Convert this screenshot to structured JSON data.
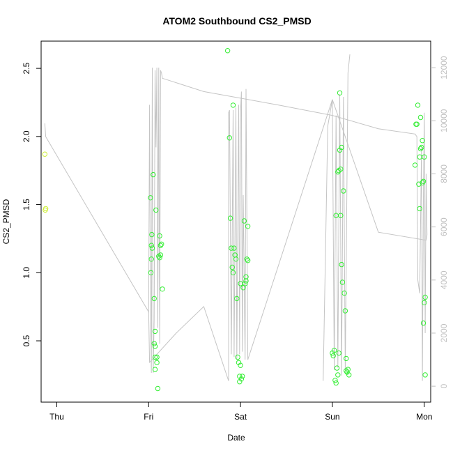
{
  "chart_data": {
    "type": "scatter",
    "title": "ATOM2 Southbound CS2_PMSD",
    "xlabel": "Date",
    "ylabel": "CS2_PMSD",
    "x_ticks": [
      "Thu",
      "Fri",
      "Sat",
      "Sun",
      "Mon"
    ],
    "x_tick_values": [
      0,
      1,
      2,
      3,
      4
    ],
    "xlim": [
      -0.17,
      4.07
    ],
    "y_ticks": [
      "0.5",
      "1.0",
      "1.5",
      "2.0",
      "2.5"
    ],
    "y_tick_values": [
      0.5,
      1.0,
      1.5,
      2.0,
      2.5
    ],
    "ylim": [
      0.05,
      2.7
    ],
    "y2_ticks": [
      "0",
      "2000",
      "4000",
      "6000",
      "8000",
      "10000",
      "12000"
    ],
    "y2_tick_values": [
      0,
      2000,
      4000,
      6000,
      8000,
      10000,
      12000
    ],
    "y2lim": [
      -600,
      13000
    ],
    "colors": {
      "points_yellow": "#ccee33",
      "points_green": "#33ee33",
      "line": "#c4c4c4"
    },
    "series": [
      {
        "color": "#ccee33",
        "points": [
          [
            -0.13,
            1.87
          ],
          [
            -0.12,
            1.47
          ],
          [
            -0.125,
            1.46
          ]
        ]
      },
      {
        "color": "#33ee33",
        "points": [
          [
            1.02,
            1.55
          ],
          [
            1.03,
            1.2
          ],
          [
            1.035,
            1.28
          ],
          [
            1.04,
            1.18
          ],
          [
            1.03,
            1.1
          ],
          [
            1.025,
            1.0
          ],
          [
            1.05,
            1.72
          ],
          [
            1.06,
            0.81
          ],
          [
            1.07,
            0.57
          ],
          [
            1.08,
            1.46
          ],
          [
            1.07,
            0.46
          ],
          [
            1.06,
            0.48
          ],
          [
            1.07,
            0.38
          ],
          [
            1.09,
            0.38
          ],
          [
            1.07,
            0.29
          ],
          [
            1.09,
            0.34
          ],
          [
            1.1,
            0.15
          ],
          [
            1.11,
            1.12
          ],
          [
            1.12,
            1.11
          ],
          [
            1.13,
            1.2
          ],
          [
            1.12,
            1.27
          ],
          [
            1.14,
            1.21
          ],
          [
            1.13,
            1.13
          ],
          [
            1.15,
            0.88
          ],
          [
            1.86,
            2.63
          ],
          [
            1.88,
            1.99
          ],
          [
            1.89,
            1.4
          ],
          [
            1.9,
            1.18
          ],
          [
            1.91,
            1.04
          ],
          [
            1.92,
            1.0
          ],
          [
            1.93,
            1.18
          ],
          [
            1.94,
            1.13
          ],
          [
            1.92,
            2.23
          ],
          [
            1.95,
            1.1
          ],
          [
            1.96,
            0.81
          ],
          [
            1.97,
            0.38
          ],
          [
            1.98,
            0.34
          ],
          [
            1.99,
            0.24
          ],
          [
            1.99,
            0.2
          ],
          [
            2.0,
            0.32
          ],
          [
            2.01,
            0.22
          ],
          [
            2.02,
            0.24
          ],
          [
            2.03,
            0.89
          ],
          [
            2.04,
            1.38
          ],
          [
            2.05,
            0.92
          ],
          [
            2.06,
            0.94
          ],
          [
            2.06,
            0.97
          ],
          [
            2.07,
            1.1
          ],
          [
            2.08,
            1.09
          ],
          [
            2.08,
            1.34
          ],
          [
            2.0,
            0.92
          ],
          [
            3.0,
            0.41
          ],
          [
            3.01,
            0.39
          ],
          [
            3.02,
            0.43
          ],
          [
            3.03,
            0.21
          ],
          [
            3.04,
            0.19
          ],
          [
            3.05,
            0.3
          ],
          [
            3.06,
            0.25
          ],
          [
            3.04,
            1.42
          ],
          [
            3.06,
            1.74
          ],
          [
            3.07,
            1.75
          ],
          [
            3.08,
            1.9
          ],
          [
            3.09,
            1.76
          ],
          [
            3.1,
            1.92
          ],
          [
            3.08,
            2.32
          ],
          [
            3.09,
            1.42
          ],
          [
            3.1,
            1.06
          ],
          [
            3.11,
            0.93
          ],
          [
            3.12,
            1.6
          ],
          [
            3.13,
            0.85
          ],
          [
            3.14,
            0.72
          ],
          [
            3.15,
            0.37
          ],
          [
            3.15,
            0.28
          ],
          [
            3.16,
            0.27
          ],
          [
            3.17,
            0.29
          ],
          [
            3.18,
            0.25
          ],
          [
            3.07,
            0.41
          ],
          [
            3.9,
            1.79
          ],
          [
            3.91,
            2.09
          ],
          [
            3.92,
            2.09
          ],
          [
            3.93,
            2.23
          ],
          [
            3.94,
            1.65
          ],
          [
            3.95,
            1.85
          ],
          [
            3.95,
            1.47
          ],
          [
            3.96,
            1.91
          ],
          [
            3.96,
            2.14
          ],
          [
            3.97,
            1.92
          ],
          [
            3.98,
            1.97
          ],
          [
            3.98,
            1.66
          ],
          [
            3.99,
            1.67
          ],
          [
            4.0,
            1.85
          ],
          [
            3.99,
            0.63
          ],
          [
            4.0,
            0.78
          ],
          [
            4.01,
            0.82
          ],
          [
            4.01,
            0.25
          ]
        ]
      }
    ],
    "line_series_y2": [
      [
        -0.13,
        9900
      ],
      [
        -0.12,
        9400
      ],
      [
        1.0,
        2800
      ],
      [
        1.01,
        10600
      ],
      [
        1.02,
        2800
      ],
      [
        1.03,
        500
      ],
      [
        1.04,
        12000
      ],
      [
        1.05,
        500
      ],
      [
        1.06,
        2500
      ],
      [
        1.07,
        11900
      ],
      [
        1.08,
        9000
      ],
      [
        1.09,
        12000
      ],
      [
        1.1,
        2200
      ],
      [
        1.11,
        12000
      ],
      [
        1.12,
        1600
      ],
      [
        1.13,
        11900
      ],
      [
        1.14,
        11800
      ],
      [
        1.15,
        11600
      ],
      [
        1.6,
        11100
      ],
      [
        2.4,
        10600
      ],
      [
        3.0,
        10200
      ],
      [
        3.5,
        9700
      ],
      [
        3.9,
        9500
      ],
      [
        3.92,
        9400
      ],
      [
        3.93,
        4000
      ],
      [
        3.95,
        3500
      ],
      [
        3.97,
        9000
      ],
      [
        3.98,
        200
      ],
      [
        3.99,
        7000
      ],
      [
        4.0,
        10300
      ],
      [
        4.01,
        2000
      ],
      [
        4.02,
        8000
      ],
      [
        4.03,
        5700
      ],
      [
        4.02,
        5500
      ],
      [
        3.5,
        5800
      ],
      [
        3.0,
        10800
      ],
      [
        2.95,
        9800
      ],
      [
        2.9,
        200
      ]
    ],
    "line_series_y2_secondary": [
      [
        1.0,
        2800
      ],
      [
        1.0,
        2800
      ],
      [
        1.01,
        900
      ],
      [
        1.3,
        2000
      ],
      [
        1.6,
        3000
      ],
      [
        1.87,
        200
      ],
      [
        1.87,
        10300
      ],
      [
        1.88,
        10400
      ],
      [
        1.9,
        1200
      ],
      [
        1.92,
        10400
      ],
      [
        1.93,
        1100
      ],
      [
        1.95,
        10500
      ],
      [
        1.96,
        1000
      ],
      [
        1.98,
        10600
      ],
      [
        1.99,
        1200
      ],
      [
        2.0,
        10300
      ],
      [
        2.01,
        11100
      ],
      [
        2.02,
        1300
      ],
      [
        2.03,
        7200
      ],
      [
        2.05,
        1000
      ],
      [
        2.06,
        11200
      ],
      [
        2.08,
        1000
      ],
      [
        3.0,
        10800
      ],
      [
        3.02,
        600
      ],
      [
        3.04,
        10200
      ],
      [
        3.06,
        700
      ],
      [
        3.08,
        11000
      ],
      [
        3.1,
        400
      ],
      [
        3.12,
        10900
      ],
      [
        3.14,
        600
      ],
      [
        3.17,
        11800
      ],
      [
        3.19,
        12500
      ]
    ]
  }
}
